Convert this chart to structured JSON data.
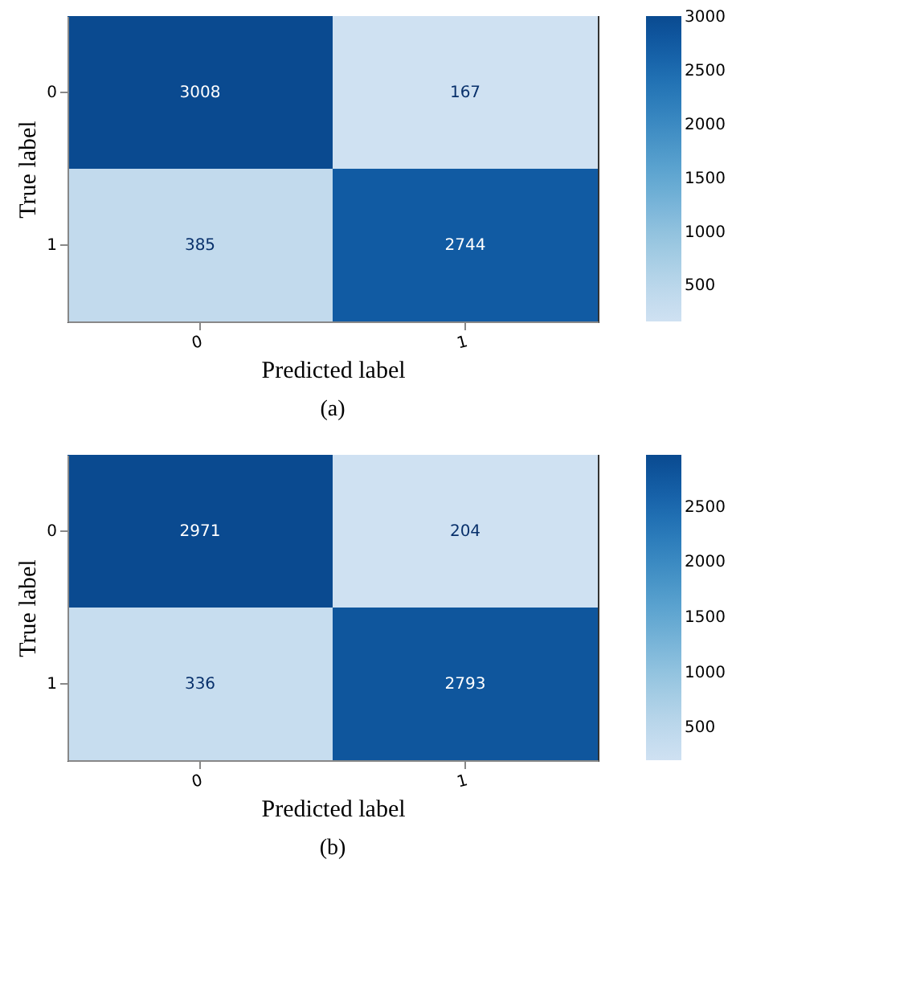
{
  "chart_data": [
    {
      "type": "heatmap",
      "categories": [
        "0",
        "1"
      ],
      "y_categories": [
        "0",
        "1"
      ],
      "xlabel": "Predicted label",
      "ylabel": "True label",
      "cells": [
        [
          3008,
          167
        ],
        [
          385,
          2744
        ]
      ],
      "clim": [
        167,
        3008
      ],
      "cticks": [
        500,
        1000,
        1500,
        2000,
        2500,
        3000
      ],
      "data_labels": true,
      "annotations": [
        "(a)"
      ]
    },
    {
      "type": "heatmap",
      "categories": [
        "0",
        "1"
      ],
      "y_categories": [
        "0",
        "1"
      ],
      "xlabel": "Predicted label",
      "ylabel": "True label",
      "cells": [
        [
          2971,
          204
        ],
        [
          336,
          2793
        ]
      ],
      "clim": [
        204,
        2971
      ],
      "cticks": [
        500,
        1000,
        1500,
        2000,
        2500
      ],
      "data_labels": true,
      "annotations": [
        "(b)"
      ]
    }
  ]
}
